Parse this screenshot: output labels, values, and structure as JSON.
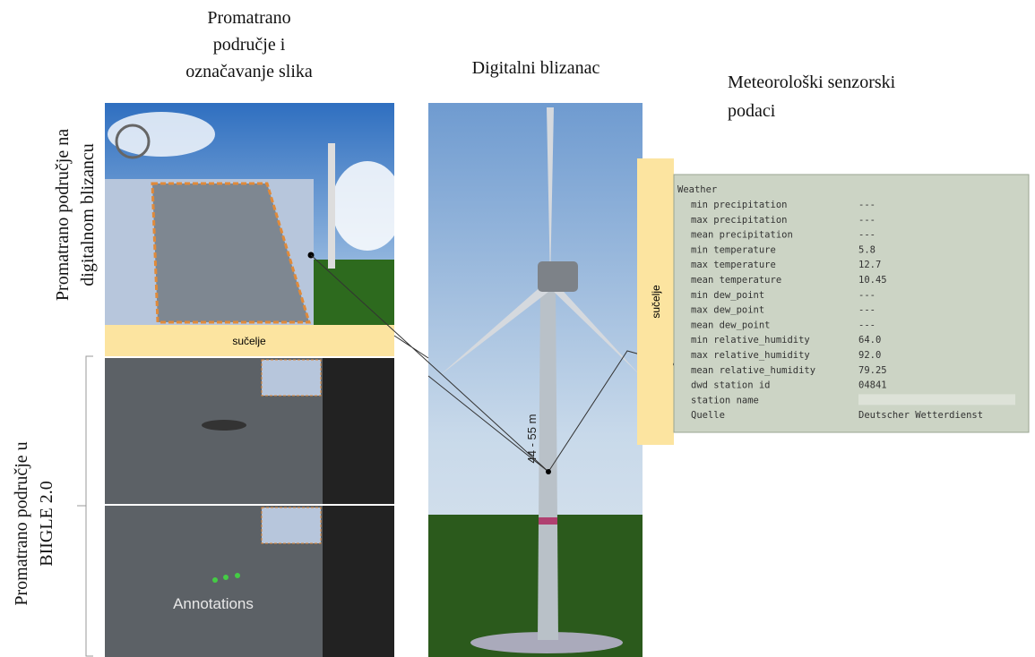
{
  "column_titles": {
    "observation": [
      "Promatrano",
      "područje i",
      "označavanje slika"
    ],
    "twin": "Digitalni blizanac",
    "meteo": [
      "Meteorološki senzorski",
      "podaci"
    ]
  },
  "row_labels": {
    "twin_area": [
      "Promatrano područje na",
      "digitalnom blizancu"
    ],
    "biigle_area": [
      "Promatrano područje u",
      "BIIGLE 2.0"
    ]
  },
  "interfaces": [
    "sučelje",
    "sučelje"
  ],
  "tower_height": "44 - 55 m",
  "biigle": {
    "annotations": "Annotations"
  },
  "weather": {
    "title": "Weather",
    "rows": [
      [
        "min precipitation",
        "---"
      ],
      [
        "max precipitation",
        "---"
      ],
      [
        "mean precipitation",
        "---"
      ],
      [
        "min temperature",
        "5.8"
      ],
      [
        "max temperature",
        "12.7"
      ],
      [
        "mean temperature",
        "10.45"
      ],
      [
        "min dew_point",
        "---"
      ],
      [
        "max dew_point",
        "---"
      ],
      [
        "mean dew_point",
        "---"
      ],
      [
        "min relative_humidity",
        "64.0"
      ],
      [
        "max relative_humidity",
        "92.0"
      ],
      [
        "mean relative_humidity",
        "79.25"
      ],
      [
        "dwd station id",
        "04841"
      ],
      [
        "station name"
      ],
      [
        "Quelle",
        "Deutscher Wetterdienst"
      ]
    ]
  }
}
